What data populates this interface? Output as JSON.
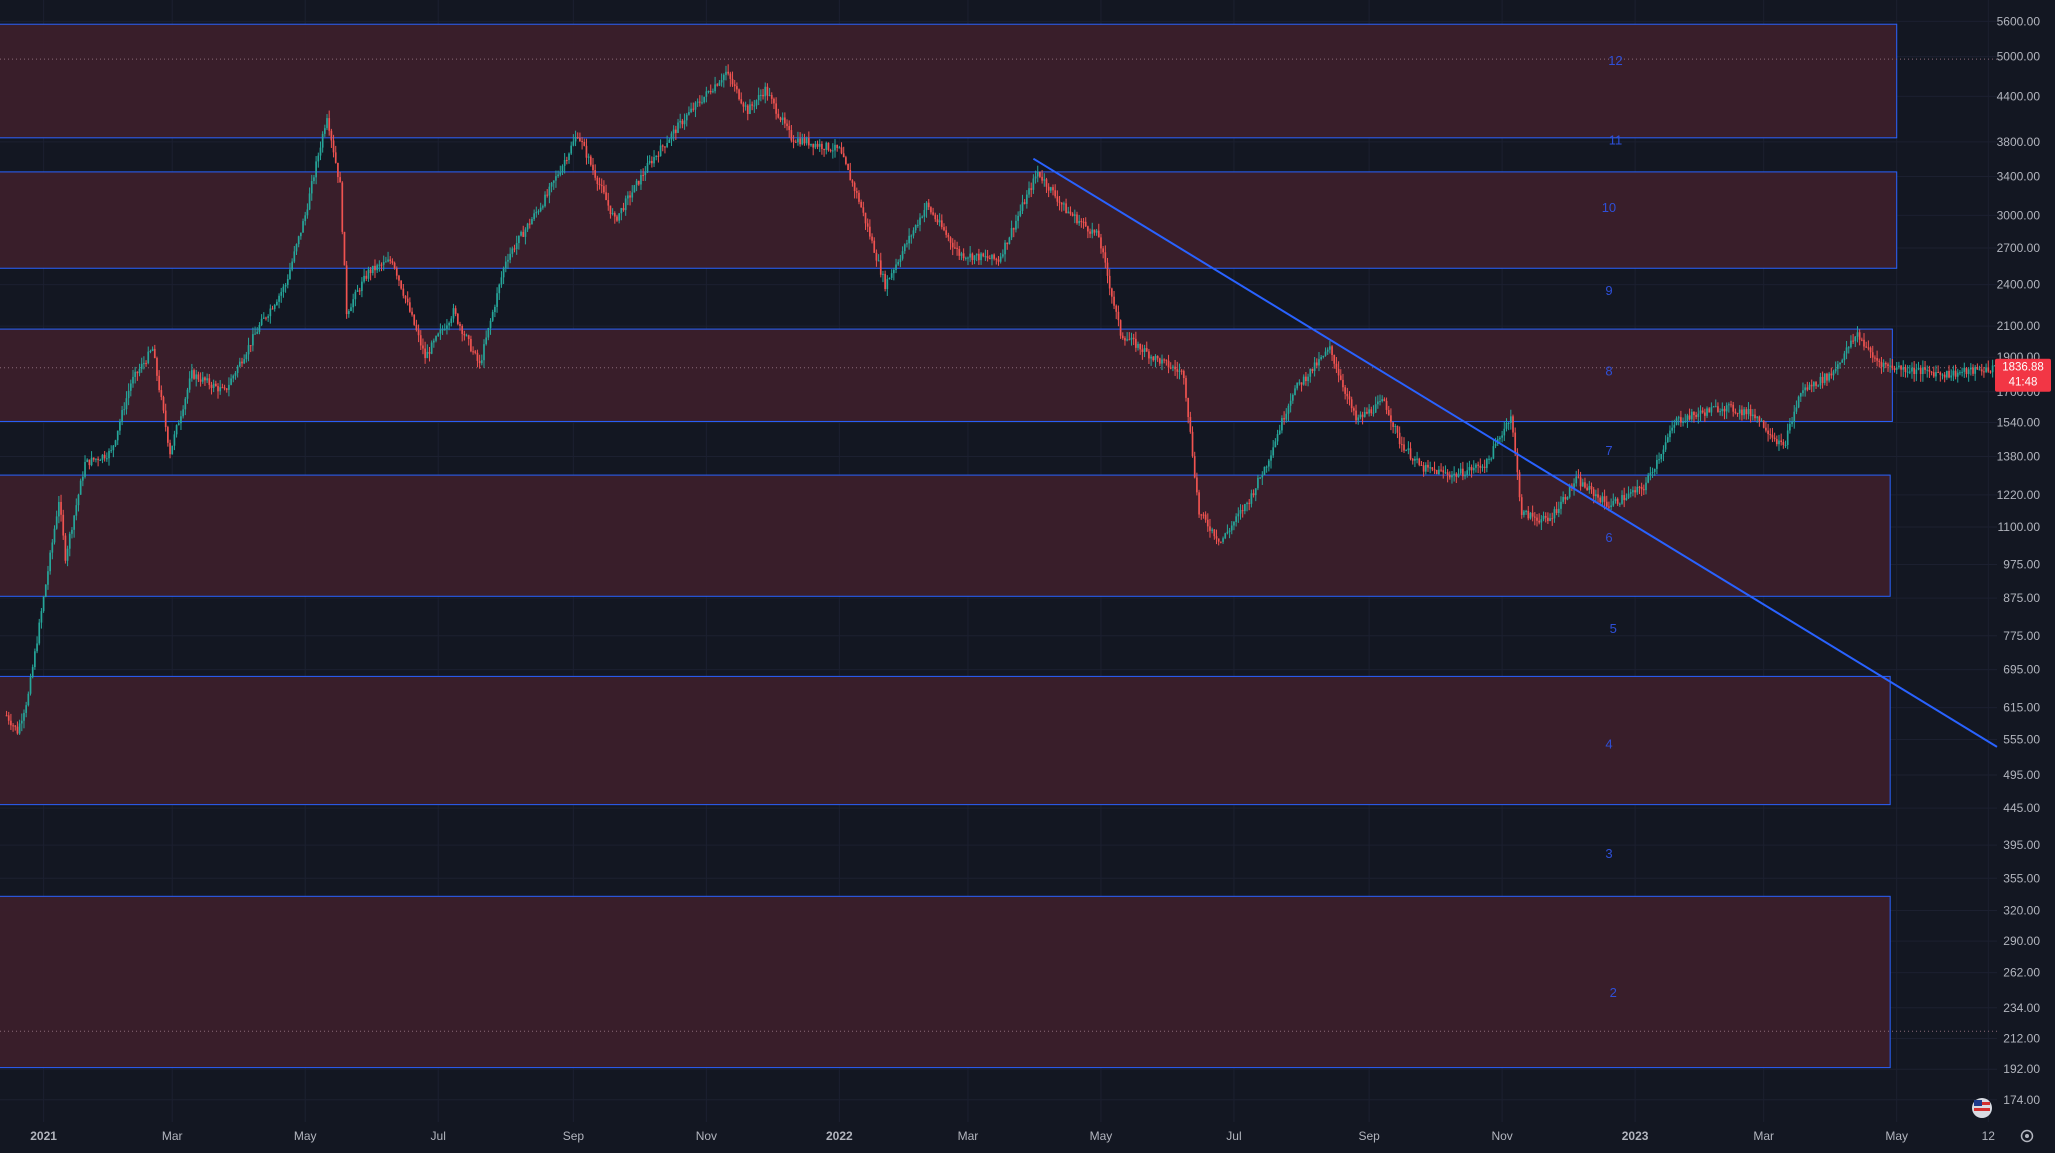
{
  "chart_data": {
    "type": "candlestick",
    "title": "",
    "y_scale": "log",
    "ylim": [
      162,
      6000
    ],
    "xlim": [
      "2020-12-12",
      "2023-06-16"
    ],
    "grid": true,
    "y_ticks": [
      "5600.00",
      "5000.00",
      "4400.00",
      "3800.00",
      "3400.00",
      "3000.00",
      "2700.00",
      "2400.00",
      "2100.00",
      "1900.00",
      "1700.00",
      "1540.00",
      "1380.00",
      "1220.00",
      "1100.00",
      "975.00",
      "875.00",
      "775.00",
      "695.00",
      "615.00",
      "555.00",
      "495.00",
      "445.00",
      "395.00",
      "355.00",
      "320.00",
      "290.00",
      "262.00",
      "234.00",
      "212.00",
      "192.00",
      "174.00"
    ],
    "x_ticks": [
      {
        "label": "2021",
        "date": "2021-01-01",
        "bold": true
      },
      {
        "label": "Mar",
        "date": "2021-03-01",
        "bold": false
      },
      {
        "label": "May",
        "date": "2021-05-01",
        "bold": false
      },
      {
        "label": "Jul",
        "date": "2021-07-01",
        "bold": false
      },
      {
        "label": "Sep",
        "date": "2021-09-01",
        "bold": false
      },
      {
        "label": "Nov",
        "date": "2021-11-01",
        "bold": false
      },
      {
        "label": "2022",
        "date": "2022-01-01",
        "bold": true
      },
      {
        "label": "Mar",
        "date": "2022-03-01",
        "bold": false
      },
      {
        "label": "May",
        "date": "2022-05-01",
        "bold": false
      },
      {
        "label": "Jul",
        "date": "2022-07-01",
        "bold": false
      },
      {
        "label": "Sep",
        "date": "2022-09-01",
        "bold": false
      },
      {
        "label": "Nov",
        "date": "2022-11-01",
        "bold": false
      },
      {
        "label": "2023",
        "date": "2023-01-01",
        "bold": true
      },
      {
        "label": "Mar",
        "date": "2023-03-01",
        "bold": false
      },
      {
        "label": "May",
        "date": "2023-05-01",
        "bold": false
      },
      {
        "label": "12",
        "date": "2023-06-12",
        "bold": false
      }
    ],
    "price_path": [
      [
        "2020-12-15",
        600
      ],
      [
        "2020-12-20",
        570
      ],
      [
        "2020-12-25",
        640
      ],
      [
        "2021-01-04",
        1000
      ],
      [
        "2021-01-08",
        1200
      ],
      [
        "2021-01-11",
        1000
      ],
      [
        "2021-01-20",
        1350
      ],
      [
        "2021-02-01",
        1400
      ],
      [
        "2021-02-10",
        1750
      ],
      [
        "2021-02-20",
        1950
      ],
      [
        "2021-02-28",
        1400
      ],
      [
        "2021-03-10",
        1800
      ],
      [
        "2021-03-25",
        1700
      ],
      [
        "2021-04-10",
        2100
      ],
      [
        "2021-04-22",
        2400
      ],
      [
        "2021-05-01",
        3000
      ],
      [
        "2021-05-11",
        4150
      ],
      [
        "2021-05-17",
        3300
      ],
      [
        "2021-05-20",
        2200
      ],
      [
        "2021-05-30",
        2500
      ],
      [
        "2021-06-10",
        2600
      ],
      [
        "2021-06-25",
        1900
      ],
      [
        "2021-07-08",
        2200
      ],
      [
        "2021-07-20",
        1850
      ],
      [
        "2021-08-01",
        2600
      ],
      [
        "2021-08-20",
        3200
      ],
      [
        "2021-09-03",
        3900
      ],
      [
        "2021-09-20",
        2950
      ],
      [
        "2021-10-06",
        3550
      ],
      [
        "2021-10-22",
        4100
      ],
      [
        "2021-11-10",
        4750
      ],
      [
        "2021-11-20",
        4200
      ],
      [
        "2021-11-28",
        4500
      ],
      [
        "2021-12-10",
        3850
      ],
      [
        "2022-01-01",
        3700
      ],
      [
        "2022-01-10",
        3150
      ],
      [
        "2022-01-22",
        2400
      ],
      [
        "2022-02-10",
        3100
      ],
      [
        "2022-02-25",
        2650
      ],
      [
        "2022-03-15",
        2600
      ],
      [
        "2022-04-02",
        3450
      ],
      [
        "2022-04-15",
        3050
      ],
      [
        "2022-04-30",
        2800
      ],
      [
        "2022-05-10",
        2050
      ],
      [
        "2022-05-25",
        1900
      ],
      [
        "2022-06-08",
        1800
      ],
      [
        "2022-06-15",
        1150
      ],
      [
        "2022-06-25",
        1050
      ],
      [
        "2022-07-08",
        1200
      ],
      [
        "2022-07-16",
        1350
      ],
      [
        "2022-07-28",
        1700
      ],
      [
        "2022-08-14",
        1950
      ],
      [
        "2022-08-26",
        1550
      ],
      [
        "2022-09-08",
        1650
      ],
      [
        "2022-09-15",
        1450
      ],
      [
        "2022-09-25",
        1330
      ],
      [
        "2022-10-10",
        1300
      ],
      [
        "2022-10-25",
        1350
      ],
      [
        "2022-11-05",
        1580
      ],
      [
        "2022-11-10",
        1150
      ],
      [
        "2022-11-22",
        1120
      ],
      [
        "2022-12-05",
        1280
      ],
      [
        "2022-12-20",
        1180
      ],
      [
        "2023-01-05",
        1250
      ],
      [
        "2023-01-20",
        1550
      ],
      [
        "2023-02-10",
        1620
      ],
      [
        "2023-02-25",
        1580
      ],
      [
        "2023-03-10",
        1420
      ],
      [
        "2023-03-18",
        1700
      ],
      [
        "2023-04-01",
        1800
      ],
      [
        "2023-04-13",
        2050
      ],
      [
        "2023-04-20",
        1900
      ],
      [
        "2023-04-26",
        1850
      ],
      [
        "2023-05-10",
        1820
      ],
      [
        "2023-05-25",
        1800
      ],
      [
        "2023-06-16",
        1836.88
      ]
    ],
    "zones": [
      {
        "top": 5550,
        "bottom": 3850,
        "end": "2023-05-01"
      },
      {
        "top": 3450,
        "bottom": 2530,
        "end": "2023-05-01"
      },
      {
        "top": 2080,
        "bottom": 1545,
        "end": "2023-04-29"
      },
      {
        "top": 1300,
        "bottom": 880,
        "end": "2023-04-28"
      },
      {
        "top": 680,
        "bottom": 450,
        "end": "2023-04-28"
      },
      {
        "top": 335,
        "bottom": 193,
        "end": "2023-04-28"
      }
    ],
    "level_labels": [
      {
        "text": "12",
        "price": 4950,
        "date": "2022-12-23"
      },
      {
        "text": "11",
        "price": 3830,
        "date": "2022-12-23"
      },
      {
        "text": "10",
        "price": 3080,
        "date": "2022-12-20"
      },
      {
        "text": "9",
        "price": 2360,
        "date": "2022-12-20"
      },
      {
        "text": "8",
        "price": 1820,
        "date": "2022-12-20"
      },
      {
        "text": "7",
        "price": 1410,
        "date": "2022-12-20"
      },
      {
        "text": "6",
        "price": 1065,
        "date": "2022-12-20"
      },
      {
        "text": "5",
        "price": 795,
        "date": "2022-12-22"
      },
      {
        "text": "4",
        "price": 548,
        "date": "2022-12-20"
      },
      {
        "text": "3",
        "price": 385,
        "date": "2022-12-20"
      },
      {
        "text": "2",
        "price": 246,
        "date": "2022-12-22"
      }
    ],
    "trendline": {
      "start": [
        "2022-03-31",
        3600
      ],
      "end": [
        "2023-06-16",
        542
      ]
    },
    "dotted_levels": [
      4960,
      1836.88,
      217
    ],
    "last_price": {
      "value": "1836.88",
      "countdown": "41:48"
    },
    "colors": {
      "background": "#131722",
      "up": "#26a69a",
      "down": "#ef5350",
      "zone_fill": "#3b1f2b",
      "zone_border": "#2962ff",
      "trendline": "#2962ff",
      "level_text": "#2e4fd8",
      "axis_text": "#b2b5be",
      "price_label_bg": "#f23645"
    }
  }
}
